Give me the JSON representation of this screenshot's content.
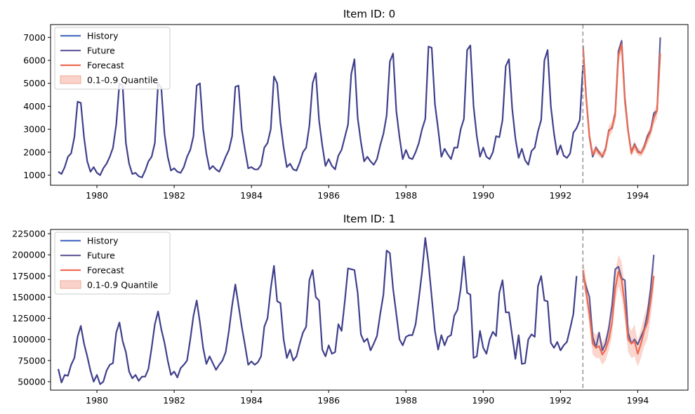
{
  "colors": {
    "history": "#4c6fc4",
    "future": "#3f3f8c",
    "forecast": "#ee6a50",
    "quantile_fill": "#f8c8bd",
    "cutoff_line": "#999999"
  },
  "chart_data": [
    {
      "type": "line",
      "title": "Item ID: 0",
      "xlabel": "",
      "ylabel": "",
      "xlim": [
        1978.8,
        1995.3
      ],
      "ylim": [
        560,
        7560
      ],
      "x_ticks": [
        1980,
        1982,
        1984,
        1986,
        1988,
        1990,
        1992,
        1994
      ],
      "x_tick_labels": [
        "1980",
        "1982",
        "1984",
        "1986",
        "1988",
        "1990",
        "1992",
        "1994"
      ],
      "y_ticks": [
        1000,
        2000,
        3000,
        4000,
        5000,
        6000,
        7000
      ],
      "y_tick_labels": [
        "1000",
        "2000",
        "3000",
        "4000",
        "5000",
        "6000",
        "7000"
      ],
      "cutoff_x": 1992.58,
      "legend": {
        "position": "top-left",
        "entries": [
          {
            "label": "History",
            "key": "history"
          },
          {
            "label": "Future",
            "key": "future"
          },
          {
            "label": "Forecast",
            "key": "forecast"
          },
          {
            "label": "0.1-0.9 Quantile",
            "key": "quantile_fill"
          }
        ]
      },
      "history": {
        "start": 1979.0,
        "step": 0.0833333,
        "values": [
          1150,
          1050,
          1350,
          1800,
          1950,
          2650,
          4200,
          4150,
          2650,
          1600,
          1150,
          1350,
          1100,
          1000,
          1300,
          1500,
          1800,
          2200,
          3200,
          5000,
          4900,
          2400,
          1500,
          1050,
          1100,
          950,
          900,
          1200,
          1600,
          1800,
          2400,
          5000,
          4800,
          2800,
          1800,
          1200,
          1300,
          1150,
          1100,
          1350,
          1800,
          2100,
          2700,
          4900,
          5000,
          3000,
          1950,
          1250,
          1400,
          1250,
          1150,
          1450,
          1800,
          2100,
          2700,
          4850,
          4900,
          3000,
          2100,
          1300,
          1350,
          1250,
          1250,
          1450,
          2200,
          2400,
          3000,
          5300,
          5000,
          3300,
          2200,
          1350,
          1500,
          1250,
          1200,
          1550,
          2000,
          2200,
          3150,
          5000,
          5450,
          3400,
          2300,
          1400,
          1700,
          1400,
          1250,
          1850,
          2100,
          2650,
          3200,
          5400,
          6050,
          3500,
          2450,
          1600,
          1800,
          1600,
          1450,
          1700,
          2300,
          2800,
          3600,
          5950,
          6300,
          3800,
          2650,
          1700,
          2100,
          1750,
          1700,
          2000,
          2400,
          3000,
          3450,
          6600,
          6550,
          4100,
          3000,
          1800,
          2150,
          1900,
          1700,
          2200,
          2200,
          3000,
          3450,
          6450,
          6650,
          4000,
          2700,
          1800,
          2200,
          1800,
          1700,
          2000,
          2700,
          2650,
          3400,
          5750,
          6050,
          3900,
          2600,
          1750,
          2150,
          1650,
          1450,
          2050,
          2200,
          2900,
          3400,
          6000,
          6450,
          4000,
          2800,
          1900,
          2300,
          1850,
          1750,
          1950,
          2850,
          3050,
          3400,
          5800
        ]
      },
      "future": {
        "start": 1992.5833,
        "step": 0.0833333,
        "values": [
          6650,
          4350,
          2650,
          1800,
          2200,
          2000,
          1800,
          2150,
          2950,
          3050,
          3700,
          6400,
          6850,
          4350,
          2950,
          2000,
          2350,
          2050,
          1950,
          2250,
          2700,
          2950,
          3700,
          3800,
          7000
        ]
      },
      "forecast": {
        "start": 1992.5833,
        "step": 0.0833333,
        "values": [
          6600,
          4300,
          2700,
          1900,
          2150,
          1950,
          1850,
          2100,
          2900,
          3100,
          3600,
          6200,
          6700,
          4200,
          2900,
          1950,
          2300,
          2000,
          1950,
          2200,
          2600,
          2900,
          3500,
          3800,
          6300
        ],
        "lower": [
          6300,
          4000,
          2450,
          1750,
          1950,
          1800,
          1700,
          1900,
          2650,
          2850,
          3300,
          5850,
          6400,
          3950,
          2700,
          1800,
          2100,
          1850,
          1800,
          2000,
          2350,
          2650,
          3200,
          3450,
          5900
        ],
        "upper": [
          6900,
          4600,
          2950,
          2050,
          2350,
          2100,
          2000,
          2300,
          3150,
          3350,
          3900,
          6550,
          7000,
          4450,
          3100,
          2150,
          2500,
          2200,
          2100,
          2400,
          2850,
          3150,
          3800,
          4100,
          6700
        ]
      }
    },
    {
      "type": "line",
      "title": "Item ID: 1",
      "xlabel": "",
      "ylabel": "",
      "xlim": [
        1978.8,
        1995.3
      ],
      "ylim": [
        40000,
        230000
      ],
      "x_ticks": [
        1980,
        1982,
        1984,
        1986,
        1988,
        1990,
        1992,
        1994
      ],
      "x_tick_labels": [
        "1980",
        "1982",
        "1984",
        "1986",
        "1988",
        "1990",
        "1992",
        "1994"
      ],
      "y_ticks": [
        50000,
        75000,
        100000,
        125000,
        150000,
        175000,
        200000,
        225000
      ],
      "y_tick_labels": [
        "50000",
        "75000",
        "100000",
        "125000",
        "150000",
        "175000",
        "200000",
        "225000"
      ],
      "cutoff_x": 1992.58,
      "legend": {
        "position": "top-left",
        "entries": [
          {
            "label": "History",
            "key": "history"
          },
          {
            "label": "Future",
            "key": "future"
          },
          {
            "label": "Forecast",
            "key": "forecast"
          },
          {
            "label": "0.1-0.9 Quantile",
            "key": "quantile_fill"
          }
        ]
      },
      "history": {
        "start": 1979.0,
        "step": 0.0833333,
        "values": [
          65000,
          49000,
          58000,
          57000,
          70000,
          78000,
          103000,
          116000,
          95000,
          80000,
          63000,
          50000,
          58000,
          47000,
          50000,
          63000,
          70000,
          72000,
          108000,
          120000,
          98000,
          85000,
          62000,
          54000,
          58000,
          51000,
          56000,
          56000,
          65000,
          90000,
          118000,
          133000,
          112000,
          96000,
          75000,
          58000,
          62000,
          55000,
          66000,
          70000,
          75000,
          100000,
          128000,
          146000,
          120000,
          90000,
          71000,
          80000,
          72000,
          64000,
          70000,
          75000,
          85000,
          110000,
          140000,
          165000,
          140000,
          115000,
          93000,
          70000,
          74000,
          70000,
          73000,
          80000,
          115000,
          125000,
          160000,
          187000,
          145000,
          143000,
          100000,
          78000,
          88000,
          75000,
          80000,
          95000,
          108000,
          115000,
          170000,
          182000,
          150000,
          146000,
          88000,
          80000,
          93000,
          83000,
          85000,
          118000,
          110000,
          145000,
          184000,
          183000,
          182000,
          155000,
          106000,
          97000,
          101000,
          87000,
          95000,
          104000,
          130000,
          153000,
          205000,
          202000,
          160000,
          130000,
          100000,
          93000,
          103000,
          105000,
          105000,
          118000,
          148000,
          180000,
          220000,
          190000,
          150000,
          110000,
          88000,
          105000,
          93000,
          103000,
          105000,
          128000,
          135000,
          160000,
          198000,
          155000,
          153000,
          78000,
          80000,
          110000,
          90000,
          83000,
          100000,
          109000,
          104000,
          155000,
          170000,
          132000,
          132000,
          104000,
          77000,
          105000,
          71000,
          72000,
          100000,
          106000,
          103000,
          163000,
          175000,
          146000,
          145000,
          96000,
          90000,
          97000,
          87000,
          93000,
          97000,
          113000,
          130000,
          175000
        ]
      },
      "future": {
        "start": 1992.5833,
        "step": 0.0833333,
        "values": [
          176000,
          162000,
          150000,
          103000,
          90000,
          108000,
          87000,
          95000,
          113000,
          140000,
          183000,
          186000,
          172000,
          170000,
          108000,
          95000,
          100000,
          94000,
          103000,
          112000,
          130000,
          160000,
          200000
        ]
      },
      "forecast": {
        "start": 1992.5833,
        "step": 0.0833333,
        "values": [
          182000,
          155000,
          130000,
          95000,
          90000,
          92000,
          82000,
          88000,
          100000,
          120000,
          160000,
          180000,
          170000,
          140000,
          100000,
          95000,
          98000,
          83000,
          95000,
          110000,
          120000,
          145000,
          175000
        ],
        "lower": [
          170000,
          143000,
          115000,
          82000,
          78000,
          78000,
          70000,
          75000,
          87000,
          104000,
          143000,
          163000,
          150000,
          122000,
          85000,
          78000,
          80000,
          68000,
          78000,
          92000,
          100000,
          125000,
          160000
        ],
        "upper": [
          195000,
          170000,
          148000,
          110000,
          105000,
          110000,
          96000,
          103000,
          118000,
          140000,
          180000,
          200000,
          192000,
          160000,
          118000,
          110000,
          118000,
          98000,
          112000,
          128000,
          140000,
          165000,
          192000
        ]
      }
    }
  ]
}
